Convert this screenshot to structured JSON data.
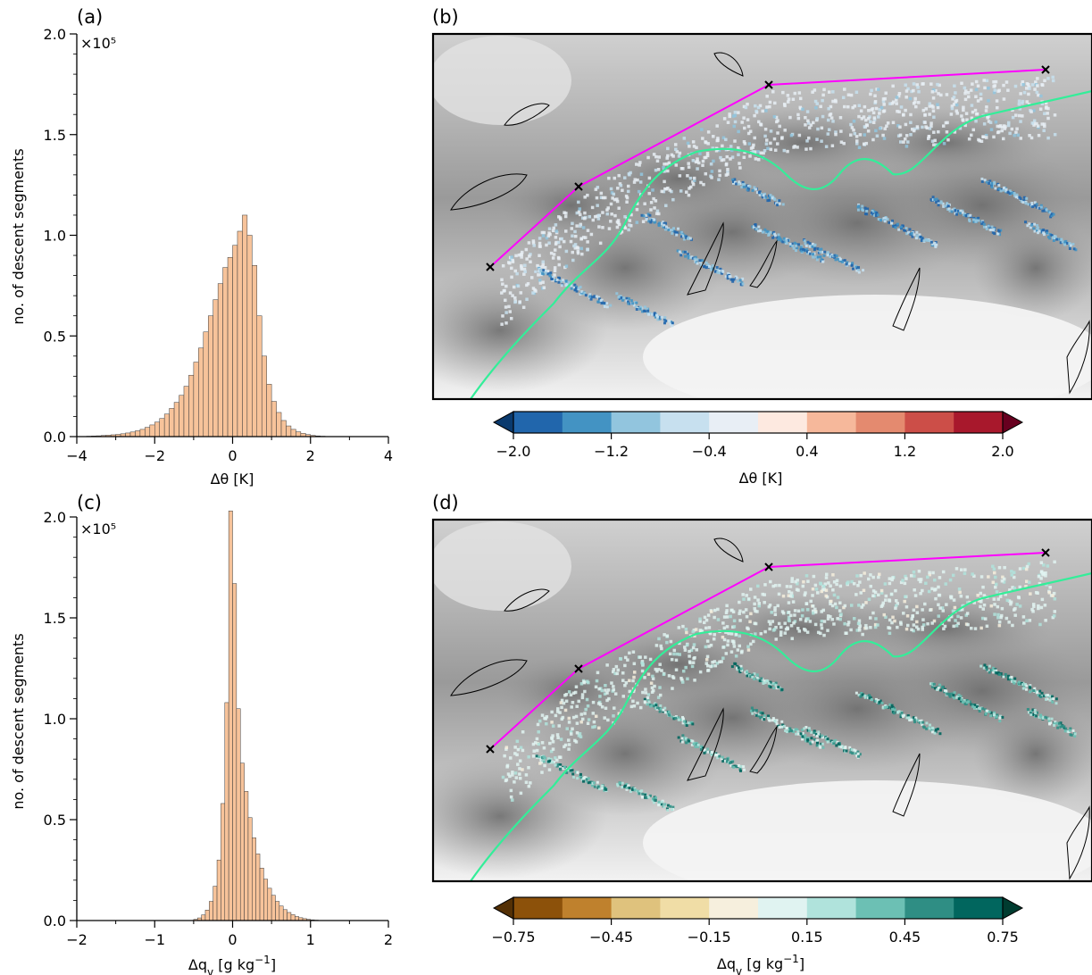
{
  "chart_data": [
    {
      "panel_label": "(a)",
      "type": "bar",
      "xlabel": "Δθ [K]",
      "ylabel": "no. of descent segments",
      "y_multiplier": "×10⁵",
      "xlim": [
        -4,
        4
      ],
      "ylim": [
        0,
        200000
      ],
      "xticks": [
        -4,
        -2,
        0,
        2,
        4
      ],
      "yticks": [
        0.0,
        0.5,
        1.0,
        1.5,
        2.0
      ],
      "bin_width": 0.125,
      "bin_start": -4,
      "counts": [
        0,
        100,
        200,
        300,
        400,
        550,
        700,
        900,
        1100,
        1400,
        1800,
        2300,
        2900,
        3600,
        4600,
        5800,
        7200,
        9000,
        11200,
        14000,
        17000,
        20500,
        25000,
        30500,
        37000,
        44000,
        52000,
        60000,
        68000,
        76000,
        84000,
        89000,
        95000,
        102000,
        110000,
        100000,
        85000,
        60000,
        40000,
        26000,
        17500,
        12000,
        8000,
        5300,
        3600,
        2400,
        1600,
        1000,
        600,
        350,
        200,
        100,
        50,
        0,
        0,
        0,
        0,
        0,
        0,
        0,
        0,
        0,
        0,
        0
      ],
      "bar_color": "#f7c39a"
    },
    {
      "panel_label": "(b)",
      "type": "heatmap",
      "colorbar_label": "Δθ [K]",
      "colorbar_ticks": [
        "−2.0",
        "−1.2",
        "−0.4",
        "0.4",
        "1.2",
        "2.0"
      ],
      "colorbar_colors": [
        "#2166ac",
        "#4393c3",
        "#92c5de",
        "#c7e0ef",
        "#e8eef5",
        "#fde9e0",
        "#f6b89b",
        "#e48a6f",
        "#cc4e48",
        "#a8182c"
      ],
      "colorbar_extend": "both",
      "extend_low_color": "#0a3a6e",
      "extend_high_color": "#67001f",
      "cross_section_line_color": "#ff00ff",
      "curve_color": "#33ee99"
    },
    {
      "panel_label": "(c)",
      "type": "bar",
      "xlabel": "Δq",
      "xlabel_sub": "v",
      "xlabel_unit": " [g kg",
      "xlabel_sup": "−1",
      "xlabel_end": "]",
      "ylabel": "no. of descent segments",
      "y_multiplier": "×10⁵",
      "xlim": [
        -2,
        2
      ],
      "ylim": [
        0,
        200000
      ],
      "xticks": [
        -2,
        -1,
        0,
        1,
        2
      ],
      "yticks": [
        0.0,
        0.5,
        1.0,
        1.5,
        2.0
      ],
      "bin_width": 0.05,
      "bin_start": -0.5,
      "counts": [
        600,
        1300,
        2800,
        5200,
        9500,
        17000,
        30000,
        58000,
        108000,
        203000,
        167000,
        105000,
        78000,
        64000,
        51000,
        41000,
        33000,
        26000,
        20500,
        16000,
        12500,
        9500,
        7200,
        5400,
        4000,
        2900,
        2000,
        1400,
        950,
        600,
        350,
        200,
        100,
        50,
        0,
        0
      ],
      "bar_color": "#f7c39a"
    },
    {
      "panel_label": "(d)",
      "type": "heatmap",
      "colorbar_label": "Δq",
      "colorbar_label_sub": "v",
      "colorbar_label_unit": " [g kg",
      "colorbar_label_sup": "−1",
      "colorbar_label_end": "]",
      "colorbar_ticks": [
        "−0.75",
        "−0.45",
        "−0.15",
        "0.15",
        "0.45",
        "0.75"
      ],
      "colorbar_colors": [
        "#8c510a",
        "#bf812d",
        "#dfc27d",
        "#f0dda6",
        "#f6efdd",
        "#e0f3f1",
        "#b0e3dc",
        "#6cc0b4",
        "#2f8e84",
        "#01665e"
      ],
      "colorbar_extend": "both",
      "extend_low_color": "#543005",
      "extend_high_color": "#003c30",
      "cross_section_line_color": "#ff00ff",
      "curve_color": "#33ee99"
    }
  ]
}
